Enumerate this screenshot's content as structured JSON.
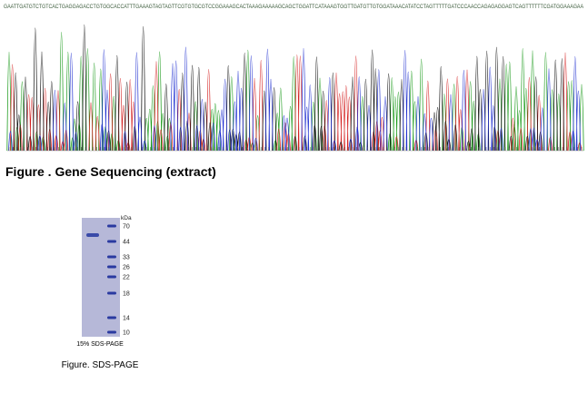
{
  "sequencing": {
    "sequence": "GAATTGATGTCTGTCACTGAGGAGACCTGTGGCACCATTTGAAAGTAGTAGTTCGTGTGCGTCCGGAAAGCACTAAAGAAAAAGCAGCTGGATTCATAAAGTGGTTGATGTTGTGGATAAACATATCCTAGTTTTTGATCCCAACCAGAGAGGAGTCAGTTTTTTCGATGGAAAGAA",
    "caption": "Figure . Gene Sequencing (extract)"
  },
  "gel": {
    "unit": "kDa",
    "markers": [
      70,
      44,
      33,
      26,
      22,
      18,
      14,
      10
    ],
    "label": "15% SDS-PAGE",
    "caption": "Figure. SDS-PAGE"
  }
}
